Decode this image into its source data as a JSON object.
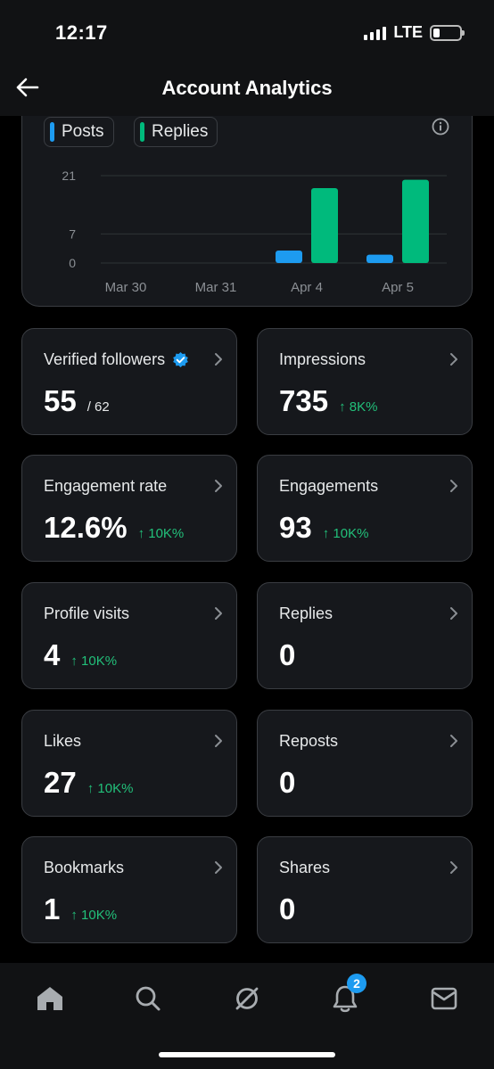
{
  "status_bar": {
    "time": "12:17",
    "network": "LTE"
  },
  "header": {
    "title": "Account Analytics"
  },
  "chart_legend": {
    "posts": "Posts",
    "replies": "Replies"
  },
  "chart_data": {
    "type": "bar",
    "categories": [
      "Mar 30",
      "Mar 31",
      "Apr 4",
      "Apr 5"
    ],
    "series": [
      {
        "name": "Posts",
        "values": [
          0,
          0,
          3,
          2
        ],
        "color": "#1d9bf0"
      },
      {
        "name": "Replies",
        "values": [
          0,
          0,
          18,
          20
        ],
        "color": "#00ba7c"
      }
    ],
    "y_ticks": [
      "0",
      "7",
      "21"
    ],
    "ylim": [
      0,
      21
    ],
    "grid": true
  },
  "stats": [
    {
      "label": "Verified followers",
      "value": "55",
      "sub": "/ 62",
      "trend": ""
    },
    {
      "label": "Impressions",
      "value": "735",
      "sub": "",
      "trend": "↑ 8K%"
    },
    {
      "label": "Engagement rate",
      "value": "12.6%",
      "sub": "",
      "trend": "↑ 10K%"
    },
    {
      "label": "Engagements",
      "value": "93",
      "sub": "",
      "trend": "↑ 10K%"
    },
    {
      "label": "Profile visits",
      "value": "4",
      "sub": "",
      "trend": "↑ 10K%"
    },
    {
      "label": "Replies",
      "value": "0",
      "sub": "",
      "trend": ""
    },
    {
      "label": "Likes",
      "value": "27",
      "sub": "",
      "trend": "↑ 10K%"
    },
    {
      "label": "Reposts",
      "value": "0",
      "sub": "",
      "trend": ""
    },
    {
      "label": "Bookmarks",
      "value": "1",
      "sub": "",
      "trend": "↑ 10K%"
    },
    {
      "label": "Shares",
      "value": "0",
      "sub": "",
      "trend": ""
    }
  ],
  "bottom_nav": {
    "notifications_badge": "2"
  },
  "icons": [
    "back-arrow-icon",
    "info-icon",
    "verified-badge-icon",
    "chevron-right-icon",
    "home-icon",
    "search-icon",
    "grok-icon",
    "bell-icon",
    "mail-icon"
  ],
  "colors": {
    "accent": "#1d9bf0",
    "positive": "#00ba7c",
    "card_bg": "#16181c",
    "border": "#3a3d42"
  }
}
